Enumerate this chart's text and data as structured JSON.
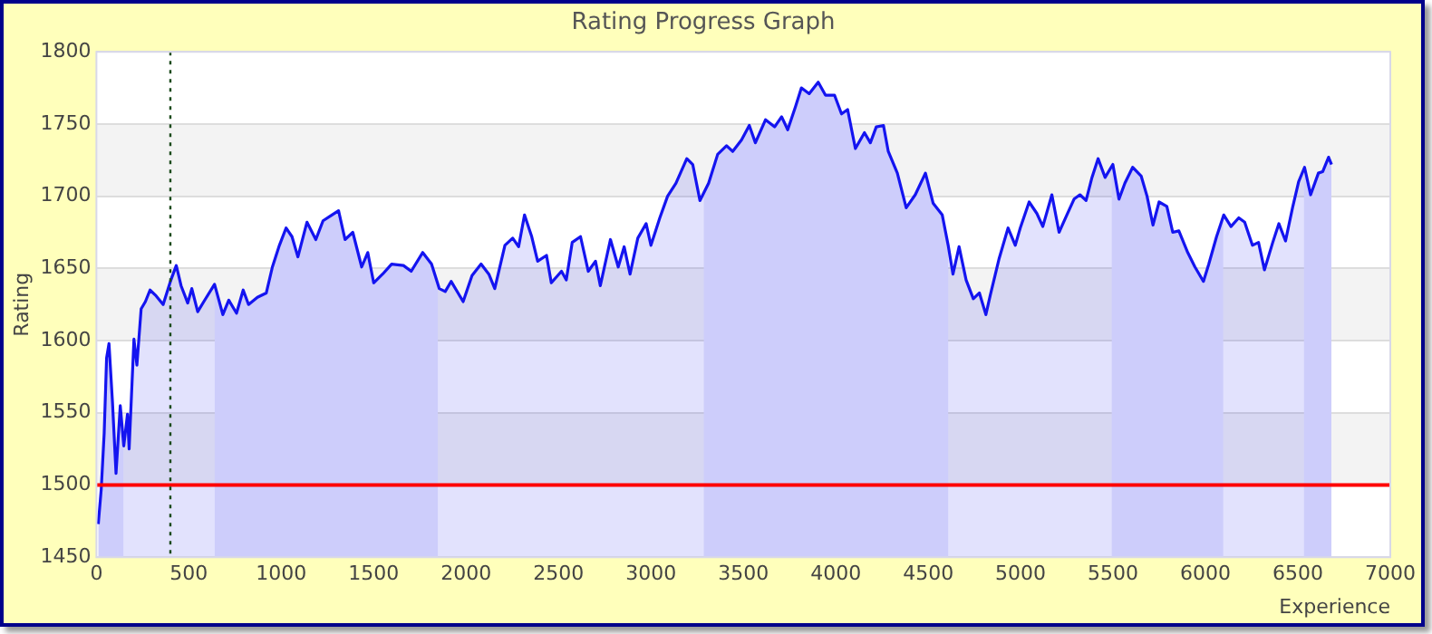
{
  "chart_data": {
    "type": "area",
    "title": "Rating Progress Graph",
    "xlabel": "Experience",
    "ylabel": "Rating",
    "xlim": [
      0,
      7000
    ],
    "xticks": [
      0,
      500,
      1000,
      1500,
      2000,
      2500,
      3000,
      3500,
      4000,
      4500,
      5000,
      5500,
      6000,
      6500,
      7000
    ],
    "ylim": [
      1450,
      1800
    ],
    "yticks": [
      1450,
      1500,
      1550,
      1600,
      1650,
      1700,
      1750,
      1800
    ],
    "grid": "y",
    "legend": false,
    "marker": "none",
    "line_style": "solid",
    "series": [
      {
        "color": "#1414f0",
        "x": [
          10,
          26,
          42,
          55,
          68,
          87,
          106,
          129,
          148,
          168,
          177,
          203,
          219,
          242,
          265,
          290,
          323,
          361,
          403,
          432,
          458,
          494,
          516,
          548,
          581,
          639,
          684,
          716,
          758,
          794,
          823,
          871,
          919,
          952,
          990,
          1026,
          1058,
          1090,
          1139,
          1187,
          1226,
          1274,
          1310,
          1345,
          1387,
          1435,
          1468,
          1500,
          1548,
          1597,
          1661,
          1703,
          1765,
          1813,
          1855,
          1887,
          1919,
          1984,
          2032,
          2081,
          2123,
          2155,
          2210,
          2252,
          2284,
          2316,
          2355,
          2387,
          2435,
          2461,
          2516,
          2542,
          2574,
          2619,
          2661,
          2700,
          2726,
          2781,
          2823,
          2855,
          2887,
          2929,
          2974,
          3000,
          3048,
          3090,
          3135,
          3194,
          3226,
          3265,
          3312,
          3361,
          3409,
          3442,
          3490,
          3532,
          3565,
          3620,
          3669,
          3707,
          3740,
          3782,
          3814,
          3856,
          3905,
          3944,
          3993,
          4031,
          4064,
          4106,
          4155,
          4187,
          4219,
          4258,
          4284,
          4333,
          4381,
          4430,
          4485,
          4527,
          4576,
          4608,
          4634,
          4667,
          4705,
          4744,
          4777,
          4812,
          4835,
          4884,
          4932,
          4971,
          4998,
          5046,
          5088,
          5120,
          5169,
          5208,
          5250,
          5289,
          5321,
          5354,
          5386,
          5419,
          5457,
          5499,
          5532,
          5564,
          5606,
          5652,
          5684,
          5716,
          5749,
          5791,
          5823,
          5856,
          5904,
          5943,
          5989,
          6018,
          6060,
          6099,
          6138,
          6180,
          6212,
          6254,
          6287,
          6319,
          6364,
          6397,
          6433,
          6471,
          6504,
          6536,
          6569,
          6611,
          6634,
          6666,
          6682
        ],
        "values": [
          1473,
          1497,
          1536,
          1588,
          1598,
          1557,
          1508,
          1555,
          1527,
          1549,
          1525,
          1601,
          1583,
          1622,
          1627,
          1635,
          1631,
          1625,
          1642,
          1652,
          1638,
          1626,
          1636,
          1620,
          1627,
          1639,
          1618,
          1628,
          1619,
          1635,
          1625,
          1630,
          1633,
          1651,
          1666,
          1678,
          1672,
          1658,
          1682,
          1670,
          1683,
          1687,
          1690,
          1670,
          1675,
          1651,
          1661,
          1640,
          1646,
          1653,
          1652,
          1648,
          1661,
          1653,
          1636,
          1634,
          1641,
          1627,
          1645,
          1653,
          1646,
          1636,
          1666,
          1671,
          1665,
          1687,
          1672,
          1655,
          1659,
          1640,
          1648,
          1642,
          1668,
          1672,
          1648,
          1655,
          1638,
          1670,
          1651,
          1665,
          1646,
          1671,
          1681,
          1666,
          1685,
          1700,
          1709,
          1726,
          1722,
          1697,
          1709,
          1729,
          1735,
          1731,
          1739,
          1749,
          1737,
          1753,
          1748,
          1755,
          1746,
          1762,
          1775,
          1771,
          1779,
          1770,
          1770,
          1757,
          1760,
          1733,
          1744,
          1737,
          1748,
          1749,
          1731,
          1716,
          1692,
          1701,
          1716,
          1695,
          1687,
          1666,
          1646,
          1665,
          1642,
          1629,
          1633,
          1618,
          1631,
          1657,
          1678,
          1666,
          1678,
          1696,
          1688,
          1679,
          1701,
          1675,
          1687,
          1698,
          1701,
          1697,
          1713,
          1726,
          1713,
          1722,
          1698,
          1709,
          1720,
          1714,
          1700,
          1680,
          1696,
          1693,
          1675,
          1676,
          1661,
          1651,
          1641,
          1653,
          1672,
          1687,
          1679,
          1685,
          1682,
          1666,
          1668,
          1649,
          1668,
          1681,
          1669,
          1692,
          1710,
          1720,
          1701,
          1716,
          1717,
          1727,
          1722
        ]
      }
    ],
    "ref_lines": [
      {
        "axis": "y",
        "value": 1500,
        "color": "#ff0000",
        "line_style": "solid"
      },
      {
        "axis": "x",
        "value": 400,
        "color": "#1a4a1a",
        "line_style": "dotted"
      }
    ],
    "bands": [
      {
        "axis": "x",
        "from": 0,
        "to": 146,
        "color": "#e8e8fd"
      },
      {
        "axis": "x",
        "from": 640,
        "to": 1847,
        "color": "#e8e8fd"
      },
      {
        "axis": "x",
        "from": 3286,
        "to": 4608,
        "color": "#e8e8fd"
      },
      {
        "axis": "x",
        "from": 5493,
        "to": 6096,
        "color": "#e8e8fd"
      },
      {
        "axis": "x",
        "from": 6533,
        "to": 6682,
        "color": "#e8e8fd"
      }
    ]
  }
}
